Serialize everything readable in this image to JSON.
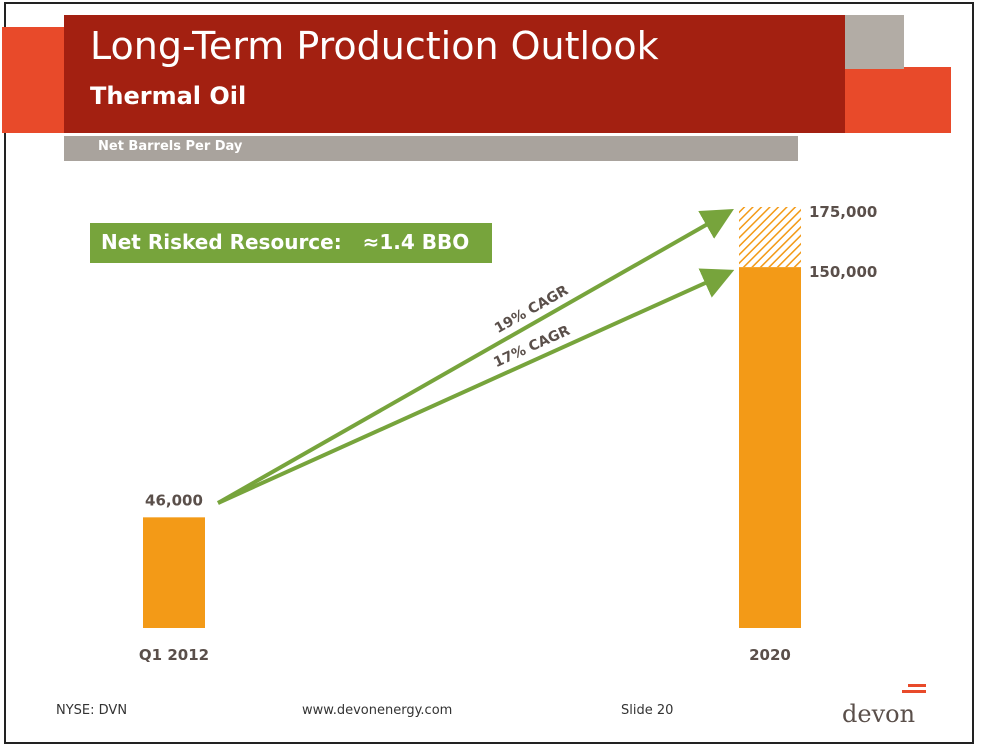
{
  "slide": {
    "title": "Long-Term Production Outlook",
    "subtitle": "Thermal Oil",
    "units_label": "Net Barrels Per Day",
    "callout": "Net Risked Resource:   ≈1.4 BBO"
  },
  "footer": {
    "ticker": "NYSE: DVN",
    "website": "www.devonenergy.com",
    "slide_number": "Slide 20",
    "logo_text": "devon"
  },
  "colors": {
    "bar": "#f39a17",
    "hatch": "#f39a17",
    "arrow": "#77a43c",
    "banner": "#a32011",
    "accent_red": "#e84a2a",
    "gray": "#b2aca5",
    "label": "#5a4f4a"
  },
  "chart_data": {
    "type": "bar",
    "categories": [
      "Q1 2012",
      "2020"
    ],
    "ylim": [
      0,
      175000
    ],
    "bars": [
      {
        "category": "Q1 2012",
        "value": 46000,
        "label": "46,000"
      },
      {
        "category": "2020",
        "value": 150000,
        "label": "150,000",
        "upside_value": 175000,
        "upside_label": "175,000"
      }
    ],
    "growth_arrows": [
      {
        "label": "19% CAGR",
        "to_value": 175000
      },
      {
        "label": "17% CAGR",
        "to_value": 150000
      }
    ],
    "legend": "none",
    "grid": false
  }
}
